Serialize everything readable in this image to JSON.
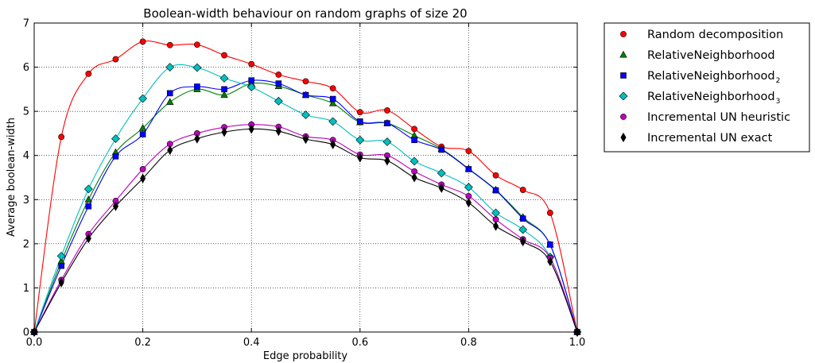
{
  "chart_data": {
    "type": "line",
    "title": "Boolean-width behaviour on random graphs of size 20",
    "xlabel": "Edge probability",
    "ylabel": "Average boolean-width",
    "xlim": [
      0.0,
      1.0
    ],
    "ylim": [
      0,
      7
    ],
    "xticks": [
      0.0,
      0.2,
      0.4,
      0.6,
      0.8,
      1.0
    ],
    "xtick_labels": [
      "0.0",
      "0.2",
      "0.4",
      "0.6",
      "0.8",
      "1.0"
    ],
    "yticks": [
      0,
      1,
      2,
      3,
      4,
      5,
      6,
      7
    ],
    "ytick_labels": [
      "0",
      "1",
      "2",
      "3",
      "4",
      "5",
      "6",
      "7"
    ],
    "grid": true,
    "legend_placement": "outside-right",
    "x": [
      0.0,
      0.05,
      0.1,
      0.15,
      0.2,
      0.25,
      0.3,
      0.35,
      0.4,
      0.45,
      0.5,
      0.55,
      0.6,
      0.65,
      0.7,
      0.75,
      0.8,
      0.85,
      0.9,
      0.95,
      1.0
    ],
    "series": [
      {
        "name": "Random decomposition",
        "name_sub": "",
        "color": "#ff0000",
        "marker": "circle",
        "values": [
          0.0,
          4.42,
          5.85,
          6.18,
          6.58,
          6.5,
          6.51,
          6.27,
          6.07,
          5.83,
          5.68,
          5.52,
          4.98,
          5.02,
          4.6,
          4.2,
          4.1,
          3.55,
          3.22,
          2.7,
          0.0
        ]
      },
      {
        "name": "RelativeNeighborhood",
        "name_sub": "",
        "color": "#008000",
        "marker": "triangle",
        "values": [
          0.0,
          1.6,
          3.0,
          4.07,
          4.62,
          5.21,
          5.5,
          5.37,
          5.63,
          5.57,
          5.37,
          5.18,
          4.75,
          4.73,
          4.45,
          4.15,
          3.7,
          3.22,
          2.6,
          1.98,
          0.0
        ]
      },
      {
        "name": "RelativeNeighborhood",
        "name_sub": "2",
        "color": "#0000ff",
        "marker": "square",
        "values": [
          0.0,
          1.5,
          2.85,
          3.98,
          4.48,
          5.41,
          5.56,
          5.5,
          5.7,
          5.63,
          5.37,
          5.28,
          4.77,
          4.73,
          4.35,
          4.13,
          3.69,
          3.21,
          2.57,
          1.98,
          0.0
        ]
      },
      {
        "name": "RelativeNeighborhood",
        "name_sub": "3",
        "color": "#00bfbf",
        "marker": "diamond",
        "values": [
          0.0,
          1.72,
          3.24,
          4.38,
          5.29,
          6.0,
          5.99,
          5.75,
          5.55,
          5.23,
          4.92,
          4.77,
          4.35,
          4.31,
          3.87,
          3.6,
          3.28,
          2.7,
          2.32,
          1.7,
          0.0
        ]
      },
      {
        "name": "Incremental UN heuristic",
        "name_sub": "",
        "color": "#bf00bf",
        "marker": "circle",
        "values": [
          0.0,
          1.18,
          2.22,
          2.97,
          3.69,
          4.26,
          4.5,
          4.64,
          4.7,
          4.65,
          4.43,
          4.35,
          4.02,
          4.0,
          3.64,
          3.34,
          3.08,
          2.55,
          2.1,
          1.68,
          0.0
        ]
      },
      {
        "name": "Incremental UN exact",
        "name_sub": "",
        "color": "#000000",
        "marker": "thin-diamond",
        "values": [
          0.0,
          1.12,
          2.12,
          2.85,
          3.48,
          4.12,
          4.38,
          4.53,
          4.6,
          4.55,
          4.37,
          4.25,
          3.95,
          3.88,
          3.5,
          3.26,
          2.93,
          2.4,
          2.05,
          1.6,
          0.0
        ]
      }
    ]
  }
}
